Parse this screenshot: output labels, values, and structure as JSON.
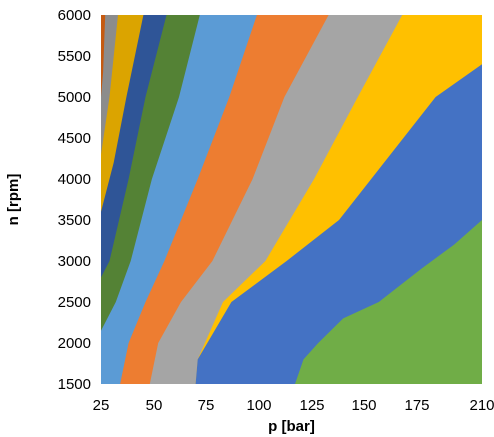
{
  "chart_data": {
    "type": "area",
    "subtype": "filled-contour",
    "title": "",
    "xlabel": "p [bar]",
    "ylabel": "n [rpm]",
    "x_ticks": [
      25,
      50,
      75,
      100,
      125,
      150,
      175,
      210
    ],
    "x_tick_labels": [
      "25",
      "50",
      "75",
      "100",
      "125",
      "150",
      "175",
      "210"
    ],
    "y_ticks": [
      1500,
      2000,
      2500,
      3000,
      3500,
      4000,
      4500,
      5000,
      5500,
      6000
    ],
    "y_tick_labels": [
      "1500",
      "2000",
      "2500",
      "3000",
      "3500",
      "4000",
      "4500",
      "5000",
      "5500",
      "6000"
    ],
    "xlim": [
      25,
      210
    ],
    "ylim": [
      1500,
      6000
    ],
    "grid": false,
    "legend": "none",
    "band_colors": [
      "#c55a11",
      "#8c8c8c",
      "#dba400",
      "#2f5597",
      "#548235",
      "#5b9bd5",
      "#ed7d31",
      "#a5a5a5",
      "#ffc000",
      "#4472c4",
      "#70ad47"
    ],
    "boundaries": [
      {
        "points": [
          [
            27,
            6000
          ],
          [
            26,
            5300
          ],
          [
            25,
            5000
          ]
        ]
      },
      {
        "points": [
          [
            33,
            6000
          ],
          [
            29,
            5000
          ],
          [
            25,
            4300
          ]
        ]
      },
      {
        "points": [
          [
            45,
            6000
          ],
          [
            37,
            5000
          ],
          [
            31,
            4200
          ],
          [
            25,
            3600
          ]
        ]
      },
      {
        "points": [
          [
            56,
            6000
          ],
          [
            46,
            5000
          ],
          [
            38,
            4000
          ],
          [
            29,
            3000
          ],
          [
            25,
            2800
          ]
        ]
      },
      {
        "points": [
          [
            72,
            6000
          ],
          [
            62,
            5000
          ],
          [
            49,
            4000
          ],
          [
            39,
            3000
          ],
          [
            32,
            2500
          ],
          [
            25,
            2150
          ]
        ]
      },
      {
        "points": [
          [
            99,
            6000
          ],
          [
            86,
            5000
          ],
          [
            71,
            4000
          ],
          [
            55,
            3000
          ],
          [
            46,
            2500
          ],
          [
            38,
            2000
          ],
          [
            34,
            1500
          ]
        ]
      },
      {
        "points": [
          [
            133,
            6000
          ],
          [
            112,
            5000
          ],
          [
            97,
            4000
          ],
          [
            78,
            3000
          ],
          [
            63,
            2500
          ],
          [
            52,
            2000
          ],
          [
            48,
            1500
          ]
        ]
      },
      {
        "points": [
          [
            168,
            6000
          ],
          [
            147,
            5000
          ],
          [
            126,
            4000
          ],
          [
            103,
            3000
          ],
          [
            83,
            2500
          ],
          [
            71,
            1800
          ],
          [
            70,
            1500
          ]
        ]
      },
      {
        "points": [
          [
            210,
            5400
          ],
          [
            185,
            5000
          ],
          [
            161,
            4250
          ],
          [
            138,
            3500
          ],
          [
            113,
            3000
          ],
          [
            87,
            2500
          ],
          [
            71,
            1800
          ],
          [
            70,
            1500
          ]
        ]
      },
      {
        "points": [
          [
            210,
            3500
          ],
          [
            195,
            3200
          ],
          [
            177,
            2900
          ],
          [
            157,
            2500
          ],
          [
            140,
            2300
          ],
          [
            128,
            2000
          ],
          [
            121,
            1800
          ],
          [
            117,
            1500
          ]
        ]
      }
    ]
  }
}
